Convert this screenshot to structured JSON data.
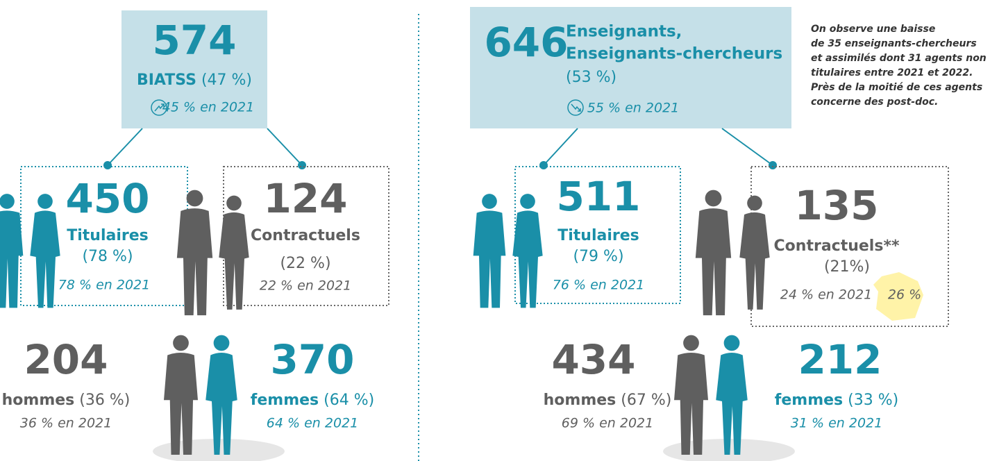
{
  "left": {
    "total": 574,
    "label": "BIATSS",
    "pct": "(47 %)",
    "prev": "45 % en 2021",
    "titulaires": {
      "value": 450,
      "label": "Titulaires",
      "pct": "(78 %)",
      "prev": "78 % en 2021"
    },
    "contractuels": {
      "value": 124,
      "label": "Contractuels",
      "pct": "(22 %)",
      "prev": "22 % en 2021"
    },
    "hommes": {
      "value": 204,
      "label": "hommes",
      "pct": "(36 %)",
      "prev": "36 % en 2021"
    },
    "femmes": {
      "value": 370,
      "label": "femmes",
      "pct": "(64 %)",
      "prev": "64 % en 2021"
    }
  },
  "right": {
    "total": 646,
    "label_lines": [
      "Enseignants,",
      "Enseignants-chercheurs"
    ],
    "pct": "(53 %)",
    "prev": "55 % en 2021",
    "note_lines": [
      "On observe une baisse",
      "de 35 enseignants-chercheurs",
      "et assimilés dont 31 agents non",
      "titulaires entre 2021 et 2022.",
      "Près de la moitié de ces agents",
      "concerne des post-doc."
    ],
    "titulaires": {
      "value": 511,
      "label": "Titulaires",
      "pct": "(79 %)",
      "prev": "76 % en 2021"
    },
    "contractuels": {
      "value": 135,
      "label": "Contractuels**",
      "pct": "(21%)",
      "prev": "24 % en 2021",
      "france": "26 %"
    },
    "hommes": {
      "value": 434,
      "label": "hommes",
      "pct": "(67 %)",
      "prev": "69 % en 2021"
    },
    "femmes": {
      "value": 212,
      "label": "femmes",
      "pct": "(33 %)",
      "prev": "31 % en 2021"
    }
  }
}
